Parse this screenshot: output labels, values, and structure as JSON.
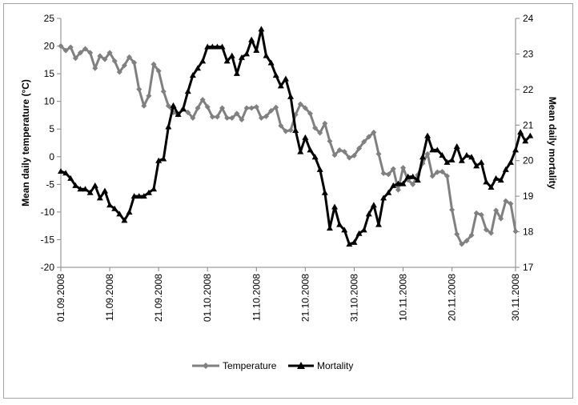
{
  "chart_data": {
    "type": "line",
    "title": "",
    "x_ticks": [
      "01.09.2008",
      "11.09.2008",
      "21.09.2008",
      "01.10.2008",
      "11.10.2008",
      "21.10.2008",
      "31.10.2008",
      "10.11.2008",
      "20.11.2008",
      "30.11.2008"
    ],
    "x_range": [
      "01.09.2008",
      "30.11.2008"
    ],
    "ylabel_left": "Mean daily temperature (°C)",
    "ylabel_right": "Mean daily mortality",
    "ylim_left": [
      -20,
      25
    ],
    "yticks_left": [
      "-20",
      "-15",
      "-10",
      "-5",
      "0",
      "5",
      "10",
      "15",
      "20",
      "25"
    ],
    "ylim_right": [
      17,
      24
    ],
    "yticks_right": [
      "17",
      "18",
      "19",
      "20",
      "21",
      "22",
      "23",
      "24"
    ],
    "grid": false,
    "legend_position": "bottom",
    "series": [
      {
        "name": "Temperature",
        "axis": "left",
        "color": "#808080",
        "marker": "diamond",
        "values": [
          20,
          19.2,
          19.8,
          17.8,
          18.8,
          19.5,
          18.8,
          16,
          18.2,
          17.6,
          18.8,
          17.3,
          15.3,
          16.5,
          18,
          17,
          12.2,
          9.2,
          11,
          16.7,
          15.5,
          11.8,
          9.2,
          8,
          7.6,
          8.6,
          8,
          7,
          8.8,
          10.3,
          9,
          7.2,
          7.2,
          8.8,
          7,
          7,
          7.8,
          6.7,
          8.8,
          8.8,
          9,
          7,
          7.3,
          8.3,
          8.9,
          5.6,
          4.6,
          4.8,
          7.6,
          9.5,
          8.8,
          7.8,
          5.2,
          4.3,
          6,
          2.8,
          0.3,
          1.2,
          0.9,
          -0.2,
          0.2,
          1.5,
          2.7,
          3.6,
          4.4,
          0.5,
          -3,
          -3.2,
          -2.2,
          -6,
          -2,
          -4.2,
          -5,
          -3.3,
          -1.2,
          0.5,
          -3.5,
          -2.8,
          -2.7,
          -3.5,
          -9.6,
          -14,
          -15.8,
          -15.2,
          -14.2,
          -10.2,
          -10.5,
          -13.2,
          -13.8,
          -9.7,
          -11.2,
          -8,
          -8.5,
          -13.5
        ]
      },
      {
        "name": "Mortality",
        "axis": "right",
        "color": "#000000",
        "marker": "triangle",
        "values": [
          19.7,
          19.65,
          19.5,
          19.3,
          19.2,
          19.2,
          19.1,
          19.3,
          18.95,
          19.15,
          18.75,
          18.65,
          18.5,
          18.32,
          18.55,
          19,
          19,
          19,
          19.1,
          19.2,
          20,
          20.05,
          20.95,
          21.55,
          21.3,
          21.45,
          21.95,
          22.4,
          22.6,
          22.8,
          23.2,
          23.2,
          23.2,
          23.2,
          22.8,
          22.95,
          22.45,
          22.9,
          23,
          23.4,
          23.1,
          23.7,
          22.95,
          22.75,
          22.4,
          22.1,
          22.3,
          21.8,
          20.85,
          20.25,
          20.65,
          20.3,
          20.1,
          19.75,
          19.1,
          18.1,
          18.7,
          18.2,
          18.05,
          17.65,
          17.7,
          17.95,
          18.05,
          18.5,
          18.75,
          18.2,
          18.95,
          19.1,
          19.3,
          19.35,
          19.35,
          19.55,
          19.55,
          19.45,
          20.1,
          20.7,
          20.3,
          20.3,
          20.15,
          19.95,
          20.02,
          20.4,
          20,
          20.15,
          20.1,
          19.85,
          19.95,
          19.4,
          19.25,
          19.5,
          19.45,
          19.75,
          19.95,
          20.3,
          20.8,
          20.55,
          20.7
        ]
      }
    ]
  }
}
